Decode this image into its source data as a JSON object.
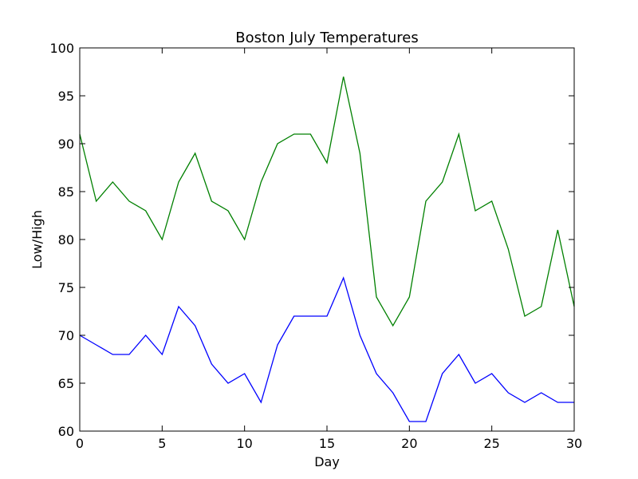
{
  "chart_data": {
    "type": "line",
    "title": "Boston July Temperatures",
    "xlabel": "Day",
    "ylabel": "Low/High",
    "xlim": [
      0,
      30
    ],
    "ylim": [
      60,
      100
    ],
    "xticks": [
      0,
      5,
      10,
      15,
      20,
      25,
      30
    ],
    "yticks": [
      60,
      65,
      70,
      75,
      80,
      85,
      90,
      95,
      100
    ],
    "grid": false,
    "x": [
      0,
      1,
      2,
      3,
      4,
      5,
      6,
      7,
      8,
      9,
      10,
      11,
      12,
      13,
      14,
      15,
      16,
      17,
      18,
      19,
      20,
      21,
      22,
      23,
      24,
      25,
      26,
      27,
      28,
      29,
      30
    ],
    "series": [
      {
        "color": "#008000",
        "values": [
          91,
          84,
          86,
          84,
          83,
          80,
          86,
          89,
          84,
          83,
          80,
          86,
          90,
          91,
          91,
          88,
          97,
          89,
          74,
          71,
          74,
          84,
          86,
          91,
          83,
          84,
          79,
          72,
          73,
          81,
          73
        ]
      },
      {
        "color": "#0000ff",
        "values": [
          70,
          69,
          68,
          68,
          70,
          68,
          73,
          71,
          67,
          65,
          66,
          63,
          69,
          72,
          72,
          72,
          76,
          70,
          66,
          64,
          61,
          61,
          66,
          68,
          65,
          66,
          64,
          63,
          64,
          63,
          63
        ]
      }
    ]
  }
}
